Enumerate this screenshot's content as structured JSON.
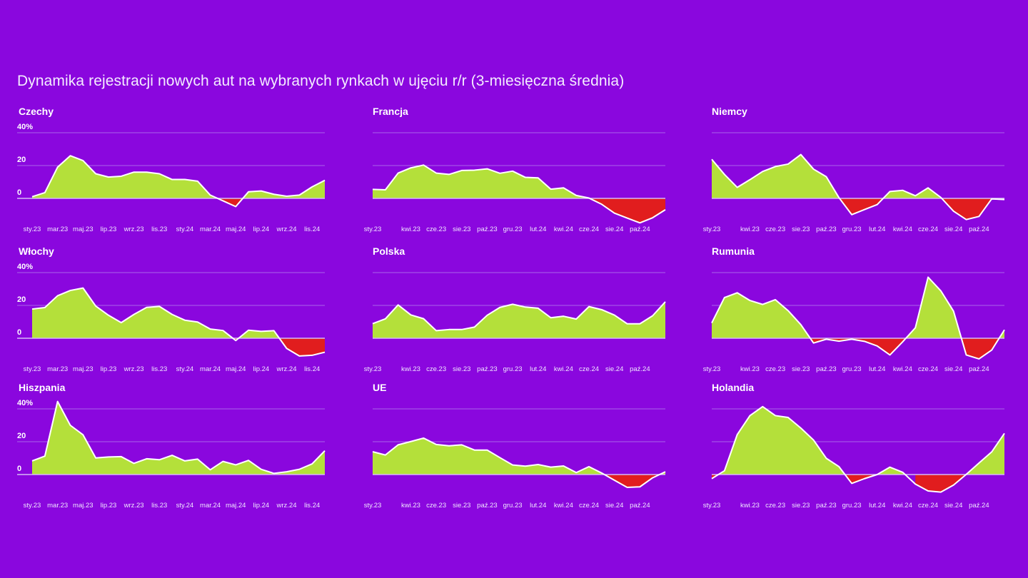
{
  "title": "Dynamika rejestracji nowych aut na wybranych rynkach w ujęciu r/r (3-miesięczna średnia)",
  "colors": {
    "background": "#8a07de",
    "positive": "#b4e03a",
    "negative": "#e11d1e",
    "line": "#ffffff",
    "grid": "#a963ea"
  },
  "chart_data": [
    {
      "type": "area",
      "title": "Czechy",
      "ylabel": "%",
      "ylim": [
        -20,
        40
      ],
      "yticks": [
        "0",
        "20",
        "40%"
      ],
      "show_yticks": true,
      "x": [
        "sty.23",
        "lut.23",
        "mar.23",
        "kwi.23",
        "maj.23",
        "cze.23",
        "lip.23",
        "sie.23",
        "wrz.23",
        "paź.23",
        "lis.23",
        "gru.23",
        "sty.24",
        "lut.24",
        "mar.24",
        "kwi.24",
        "maj.24",
        "cze.24",
        "lip.24",
        "sie.24",
        "wrz.24",
        "paź.24",
        "lis.24",
        "gru.24"
      ],
      "xticks": [
        "sty.23",
        "mar.23",
        "maj.23",
        "lip.23",
        "wrz.23",
        "lis.23",
        "sty.24",
        "mar.24",
        "maj.24",
        "lip.24",
        "wrz.24",
        "lis.24"
      ],
      "values": [
        1,
        3.5,
        19,
        26,
        23,
        15,
        13,
        13.5,
        16,
        16,
        15,
        11.5,
        11.5,
        10.5,
        2,
        -1.5,
        -5,
        4,
        4.5,
        2.5,
        1.3,
        2,
        7,
        11
      ]
    },
    {
      "type": "area",
      "title": "Francja",
      "ylabel": "%",
      "ylim": [
        -20,
        40
      ],
      "yticks": [
        "0",
        "20",
        "40%"
      ],
      "show_yticks": false,
      "x": [
        "sty.23",
        "lut.23",
        "mar.23",
        "kwi.23",
        "maj.23",
        "cze.23",
        "lip.23",
        "sie.23",
        "wrz.23",
        "paź.23",
        "lis.23",
        "gru.23",
        "sty.24",
        "lut.24",
        "mar.24",
        "kwi.24",
        "maj.24",
        "cze.24",
        "lip.24",
        "sie.24",
        "wrz.24",
        "paź.24",
        "lis.24",
        "gru.24"
      ],
      "xticks": [
        "sty.23",
        "kwi.23",
        "cze.23",
        "sie.23",
        "paź.23",
        "gru.23",
        "lut.24",
        "kwi.24",
        "cze.24",
        "sie.24",
        "paź.24"
      ],
      "values": [
        5.5,
        5.2,
        15.4,
        18.6,
        20.3,
        15.4,
        14.6,
        17,
        17.2,
        18,
        15.3,
        16.6,
        12.8,
        12.5,
        5.6,
        6.4,
        1.8,
        0.2,
        -3.6,
        -9,
        -12,
        -14.9,
        -11.8,
        -6.9
      ]
    },
    {
      "type": "area",
      "title": "Niemcy",
      "ylabel": "%",
      "ylim": [
        -20,
        40
      ],
      "yticks": [
        "0",
        "20",
        "40%"
      ],
      "show_yticks": false,
      "x": [
        "sty.23",
        "lut.23",
        "mar.23",
        "kwi.23",
        "maj.23",
        "cze.23",
        "lip.23",
        "sie.23",
        "wrz.23",
        "paź.23",
        "lis.23",
        "gru.23",
        "sty.24",
        "lut.24",
        "mar.24",
        "kwi.24",
        "maj.24",
        "cze.24",
        "lip.24",
        "sie.24",
        "wrz.24",
        "paź.24",
        "lis.24",
        "gru.24"
      ],
      "xticks": [
        "sty.23",
        "kwi.23",
        "cze.23",
        "sie.23",
        "paź.23",
        "gru.23",
        "lut.24",
        "kwi.24",
        "cze.24",
        "sie.24",
        "paź.24"
      ],
      "values": [
        23.8,
        14.6,
        6.7,
        11.4,
        16.4,
        19.4,
        20.9,
        26.7,
        17.8,
        13.2,
        0.4,
        -9.9,
        -6.8,
        -3.8,
        4.2,
        4.9,
        1.6,
        6.4,
        0.6,
        -7.8,
        -12.9,
        -11,
        -0.3,
        -0.7
      ]
    },
    {
      "type": "area",
      "title": "Włochy",
      "ylabel": "%",
      "ylim": [
        -20,
        40
      ],
      "yticks": [
        "0",
        "20",
        "40%"
      ],
      "show_yticks": true,
      "x": [
        "sty.23",
        "lut.23",
        "mar.23",
        "kwi.23",
        "maj.23",
        "cze.23",
        "lip.23",
        "sie.23",
        "wrz.23",
        "paź.23",
        "lis.23",
        "gru.23",
        "sty.24",
        "lut.24",
        "mar.24",
        "kwi.24",
        "maj.24",
        "cze.24",
        "lip.24",
        "sie.24",
        "wrz.24",
        "paź.24",
        "lis.24",
        "gru.24"
      ],
      "xticks": [
        "sty.23",
        "mar.23",
        "maj.23",
        "lip.23",
        "wrz.23",
        "lis.23",
        "sty.24",
        "mar.24",
        "maj.24",
        "lip.24",
        "wrz.24",
        "lis.24"
      ],
      "values": [
        17.8,
        18.7,
        25.9,
        29.1,
        30.6,
        19.6,
        14,
        9.5,
        14.5,
        18.8,
        19.4,
        14.5,
        11,
        9.9,
        5.6,
        4.7,
        -1.4,
        4.9,
        4.2,
        4.6,
        -6.2,
        -10.8,
        -10.4,
        -8.5
      ]
    },
    {
      "type": "area",
      "title": "Polska",
      "ylabel": "%",
      "ylim": [
        -20,
        40
      ],
      "yticks": [
        "0",
        "20",
        "40%"
      ],
      "show_yticks": false,
      "x": [
        "sty.23",
        "lut.23",
        "mar.23",
        "kwi.23",
        "maj.23",
        "cze.23",
        "lip.23",
        "sie.23",
        "wrz.23",
        "paź.23",
        "lis.23",
        "gru.23",
        "sty.24",
        "lut.24",
        "mar.24",
        "kwi.24",
        "maj.24",
        "cze.24",
        "lip.24",
        "sie.24",
        "wrz.24",
        "paź.24",
        "lis.24",
        "gru.24"
      ],
      "xticks": [
        "sty.23",
        "kwi.23",
        "cze.23",
        "sie.23",
        "paź.23",
        "gru.23",
        "lut.24",
        "kwi.24",
        "cze.24",
        "sie.24",
        "paź.24"
      ],
      "values": [
        8.9,
        11.8,
        20.3,
        14.2,
        11.9,
        4.6,
        5.3,
        5.3,
        6.8,
        14,
        18.8,
        20.7,
        19,
        18.3,
        12.5,
        13.4,
        11.7,
        19.3,
        17.4,
        14.1,
        8.8,
        8.8,
        13.7,
        22.2
      ]
    },
    {
      "type": "area",
      "title": "Rumunia",
      "ylabel": "%",
      "ylim": [
        -20,
        40
      ],
      "yticks": [
        "0",
        "20",
        "40%"
      ],
      "show_yticks": false,
      "x": [
        "sty.23",
        "lut.23",
        "mar.23",
        "kwi.23",
        "maj.23",
        "cze.23",
        "lip.23",
        "sie.23",
        "wrz.23",
        "paź.23",
        "lis.23",
        "gru.23",
        "sty.24",
        "lut.24",
        "mar.24",
        "kwi.24",
        "maj.24",
        "cze.24",
        "lip.24",
        "sie.24",
        "wrz.24",
        "paź.24",
        "lis.24",
        "gru.24"
      ],
      "xticks": [
        "sty.23",
        "kwi.23",
        "cze.23",
        "sie.23",
        "paź.23",
        "gru.23",
        "lut.24",
        "kwi.24",
        "cze.24",
        "sie.24",
        "paź.24"
      ],
      "values": [
        9.3,
        24.8,
        27.7,
        23,
        20.6,
        23.5,
        16.8,
        8.3,
        -2.9,
        -0.6,
        -1.8,
        -0.6,
        -1.9,
        -4.7,
        -10.2,
        -2.2,
        6.4,
        37.2,
        28.9,
        16.5,
        -10.2,
        -12.6,
        -7.2,
        5.1
      ]
    },
    {
      "type": "area",
      "title": "Hiszpania",
      "ylabel": "%",
      "ylim": [
        -20,
        40
      ],
      "yticks": [
        "0",
        "20",
        "40%"
      ],
      "show_yticks": true,
      "x": [
        "sty.23",
        "lut.23",
        "mar.23",
        "kwi.23",
        "maj.23",
        "cze.23",
        "lip.23",
        "sie.23",
        "wrz.23",
        "paź.23",
        "lis.23",
        "gru.23",
        "sty.24",
        "lut.24",
        "mar.24",
        "kwi.24",
        "maj.24",
        "cze.24",
        "lip.24",
        "sie.24",
        "wrz.24",
        "paź.24",
        "lis.24",
        "gru.24"
      ],
      "xticks": [
        "sty.23",
        "mar.23",
        "maj.23",
        "lip.23",
        "wrz.23",
        "lis.23",
        "sty.24",
        "mar.24",
        "maj.24",
        "lip.24",
        "wrz.24",
        "lis.24"
      ],
      "values": [
        8.3,
        11.2,
        44.5,
        30,
        24.2,
        10.1,
        10.7,
        10.9,
        6.8,
        9.6,
        9,
        11.7,
        8.3,
        9.4,
        2.9,
        8,
        5.9,
        8.6,
        3.2,
        0.7,
        1.7,
        3.2,
        6.5,
        14.5
      ]
    },
    {
      "type": "area",
      "title": "UE",
      "ylabel": "%",
      "ylim": [
        -20,
        40
      ],
      "yticks": [
        "0",
        "20",
        "40%"
      ],
      "show_yticks": false,
      "x": [
        "sty.23",
        "lut.23",
        "mar.23",
        "kwi.23",
        "maj.23",
        "cze.23",
        "lip.23",
        "sie.23",
        "wrz.23",
        "paź.23",
        "lis.23",
        "gru.23",
        "sty.24",
        "lut.24",
        "mar.24",
        "kwi.24",
        "maj.24",
        "cze.24",
        "lip.24",
        "sie.24",
        "wrz.24",
        "paź.24",
        "lis.24",
        "gru.24"
      ],
      "xticks": [
        "sty.23",
        "kwi.23",
        "cze.23",
        "sie.23",
        "paź.23",
        "gru.23",
        "lut.24",
        "kwi.24",
        "cze.24",
        "sie.24",
        "paź.24"
      ],
      "values": [
        13.9,
        11.9,
        18.1,
        20.1,
        22.2,
        18.3,
        17.5,
        18.1,
        14.9,
        14.9,
        10.3,
        5.8,
        5.1,
        6.1,
        4.5,
        5.2,
        1.2,
        4.8,
        0.9,
        -3.5,
        -7.8,
        -7.5,
        -2,
        1.7
      ]
    },
    {
      "type": "area",
      "title": "Holandia",
      "ylabel": "%",
      "ylim": [
        -20,
        40
      ],
      "yticks": [
        "0",
        "20",
        "40%"
      ],
      "show_yticks": false,
      "x": [
        "sty.23",
        "lut.23",
        "mar.23",
        "kwi.23",
        "maj.23",
        "cze.23",
        "lip.23",
        "sie.23",
        "wrz.23",
        "paź.23",
        "lis.23",
        "gru.23",
        "sty.24",
        "lut.24",
        "mar.24",
        "kwi.24",
        "maj.24",
        "cze.24",
        "lip.24",
        "sie.24",
        "wrz.24",
        "paź.24",
        "lis.24",
        "gru.24"
      ],
      "xticks": [
        "sty.23",
        "kwi.23",
        "cze.23",
        "sie.23",
        "paź.23",
        "gru.23",
        "lut.24",
        "kwi.24",
        "cze.24",
        "sie.24",
        "paź.24"
      ],
      "values": [
        -2.5,
        2.3,
        24.3,
        35.9,
        41.4,
        35.9,
        34.8,
        28.3,
        21,
        9.9,
        4.8,
        -5.4,
        -2.5,
        0,
        4.5,
        1.4,
        -5.8,
        -10,
        -10.7,
        -6.4,
        0.1,
        7,
        13.8,
        25.1
      ]
    }
  ]
}
